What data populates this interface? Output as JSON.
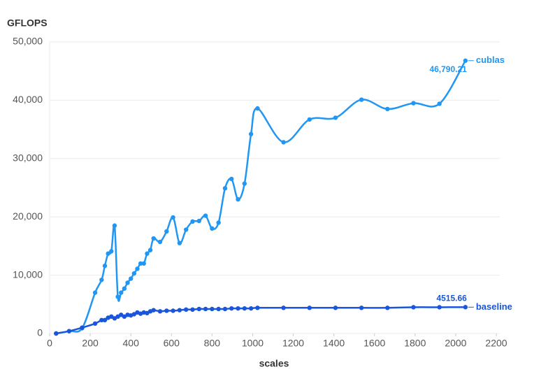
{
  "chart_data": {
    "type": "line",
    "y_label": "GFLOPS",
    "x_label": "scales",
    "xlim": [
      0,
      2200
    ],
    "xticks": [
      0,
      200,
      400,
      600,
      800,
      1000,
      1200,
      1400,
      1600,
      1800,
      2000,
      2200
    ],
    "ylim": [
      0,
      50000
    ],
    "yticks": [
      0,
      {
        "value": 10000,
        "label": "10,000"
      },
      {
        "value": 20000,
        "label": "20,000"
      },
      {
        "value": 30000,
        "label": "30,000"
      },
      {
        "value": 40000,
        "label": "40,000"
      },
      {
        "value": 50000,
        "label": "50,000"
      }
    ],
    "grid": true,
    "smooth": true,
    "x": [
      32,
      96,
      160,
      224,
      256,
      272,
      288,
      304,
      320,
      336,
      352,
      368,
      384,
      400,
      416,
      432,
      448,
      464,
      480,
      496,
      512,
      544,
      576,
      608,
      640,
      672,
      704,
      736,
      768,
      800,
      832,
      864,
      896,
      928,
      960,
      992,
      1024,
      1152,
      1280,
      1408,
      1536,
      1664,
      1792,
      1920,
      2048
    ],
    "series": [
      {
        "name": "cublas",
        "color": "#2196f3",
        "values": [
          0,
          400,
          900,
          7000,
          9200,
          11600,
          13700,
          14100,
          18500,
          6300,
          7000,
          7700,
          8700,
          9400,
          10300,
          11100,
          12000,
          12000,
          13700,
          14300,
          16300,
          15700,
          17500,
          19900,
          15500,
          17800,
          19200,
          19300,
          20200,
          18000,
          19000,
          24900,
          26500,
          23000,
          25700,
          34200,
          38600,
          32800,
          36700,
          37000,
          40100,
          38500,
          39500,
          39400,
          46790.21
        ],
        "value_labels": [
          null,
          null,
          null,
          null,
          null,
          null,
          null,
          null,
          null,
          null,
          null,
          null,
          null,
          null,
          null,
          null,
          null,
          null,
          null,
          null,
          null,
          null,
          null,
          null,
          null,
          null,
          null,
          null,
          null,
          null,
          null,
          null,
          null,
          null,
          null,
          null,
          null,
          null,
          null,
          null,
          null,
          null,
          null,
          null,
          "46,790.21"
        ]
      },
      {
        "name": "baseline",
        "color": "#1a56db",
        "values": [
          0,
          400,
          1000,
          1700,
          2300,
          2300,
          2700,
          2900,
          2600,
          2900,
          3200,
          2900,
          3200,
          3100,
          3300,
          3600,
          3400,
          3600,
          3500,
          3800,
          4000,
          3800,
          3900,
          3900,
          4000,
          4100,
          4100,
          4200,
          4200,
          4200,
          4200,
          4200,
          4300,
          4300,
          4300,
          4300,
          4400,
          4400,
          4400,
          4400,
          4400,
          4400,
          4500,
          4500,
          4515.66
        ]
      }
    ]
  }
}
